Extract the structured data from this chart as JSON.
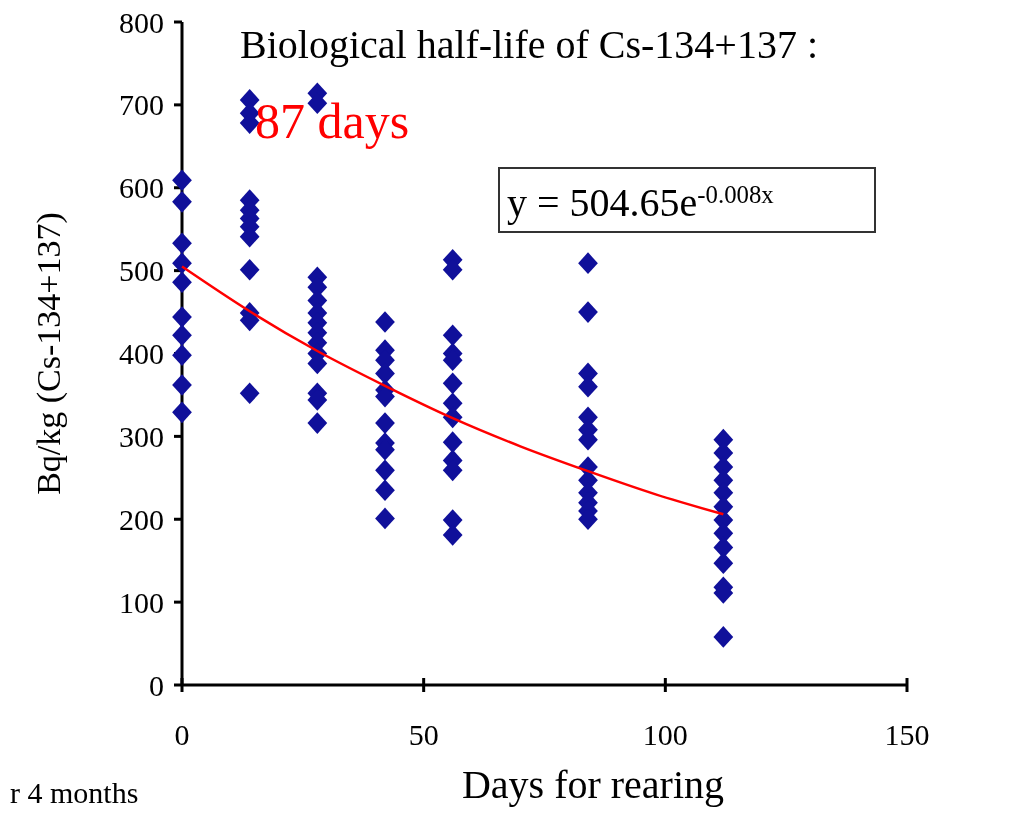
{
  "chart_data": {
    "type": "scatter",
    "title": "Biological half-life of Cs-134+137 :",
    "subtitle": "87 days",
    "xlabel": "Days for rearing",
    "ylabel": "Bq/kg (Cs-134+137)",
    "xlim": [
      0,
      150
    ],
    "xticks": [
      0,
      50,
      100,
      150
    ],
    "ylim": [
      0,
      800
    ],
    "yticks": [
      0,
      100,
      200,
      300,
      400,
      500,
      600,
      700,
      800
    ],
    "annotations": [
      "y = 504.65e$^{-0.008x}$",
      "r 4 months"
    ],
    "series": [
      {
        "color": "#10109a",
        "marker": "diamond",
        "x": [
          0,
          0,
          0,
          0,
          0,
          0,
          0,
          0,
          0,
          0,
          14,
          14,
          14,
          14,
          14,
          14,
          14,
          14,
          14,
          14,
          14,
          14,
          28,
          28,
          28,
          28,
          28,
          28,
          28,
          28,
          28,
          28,
          28,
          28,
          28,
          28,
          42,
          42,
          42,
          42,
          42,
          42,
          42,
          42,
          42,
          42,
          42,
          42,
          56,
          56,
          56,
          56,
          56,
          56,
          56,
          56,
          56,
          56,
          56,
          56,
          56,
          84,
          84,
          84,
          84,
          84,
          84,
          84,
          84,
          84,
          84,
          84,
          84,
          84,
          112,
          112,
          112,
          112,
          112,
          112,
          112,
          112,
          112,
          112,
          112,
          112,
          112
        ],
        "values": [
          609,
          583,
          533,
          509,
          486,
          444,
          422,
          398,
          362,
          329,
          706,
          690,
          678,
          585,
          573,
          563,
          553,
          541,
          501,
          449,
          440,
          352,
          714,
          702,
          492,
          480,
          464,
          449,
          437,
          425,
          413,
          400,
          388,
          352,
          344,
          316,
          438,
          404,
          392,
          376,
          356,
          348,
          316,
          292,
          284,
          259,
          235,
          201,
          513,
          501,
          422,
          400,
          392,
          364,
          340,
          323,
          293,
          271,
          259,
          199,
          181,
          509,
          450,
          376,
          360,
          323,
          308,
          296,
          263,
          247,
          232,
          220,
          210,
          200,
          296,
          280,
          263,
          247,
          232,
          215,
          199,
          183,
          166,
          147,
          118,
          111,
          58
        ]
      },
      {
        "type": "line",
        "marker": "none",
        "color": "#ff0000",
        "x": [
          0,
          14,
          28,
          42,
          56,
          70,
          84,
          98,
          112
        ],
        "values": [
          505,
          451,
          403,
          361,
          322,
          288,
          258,
          230,
          206
        ]
      }
    ]
  }
}
